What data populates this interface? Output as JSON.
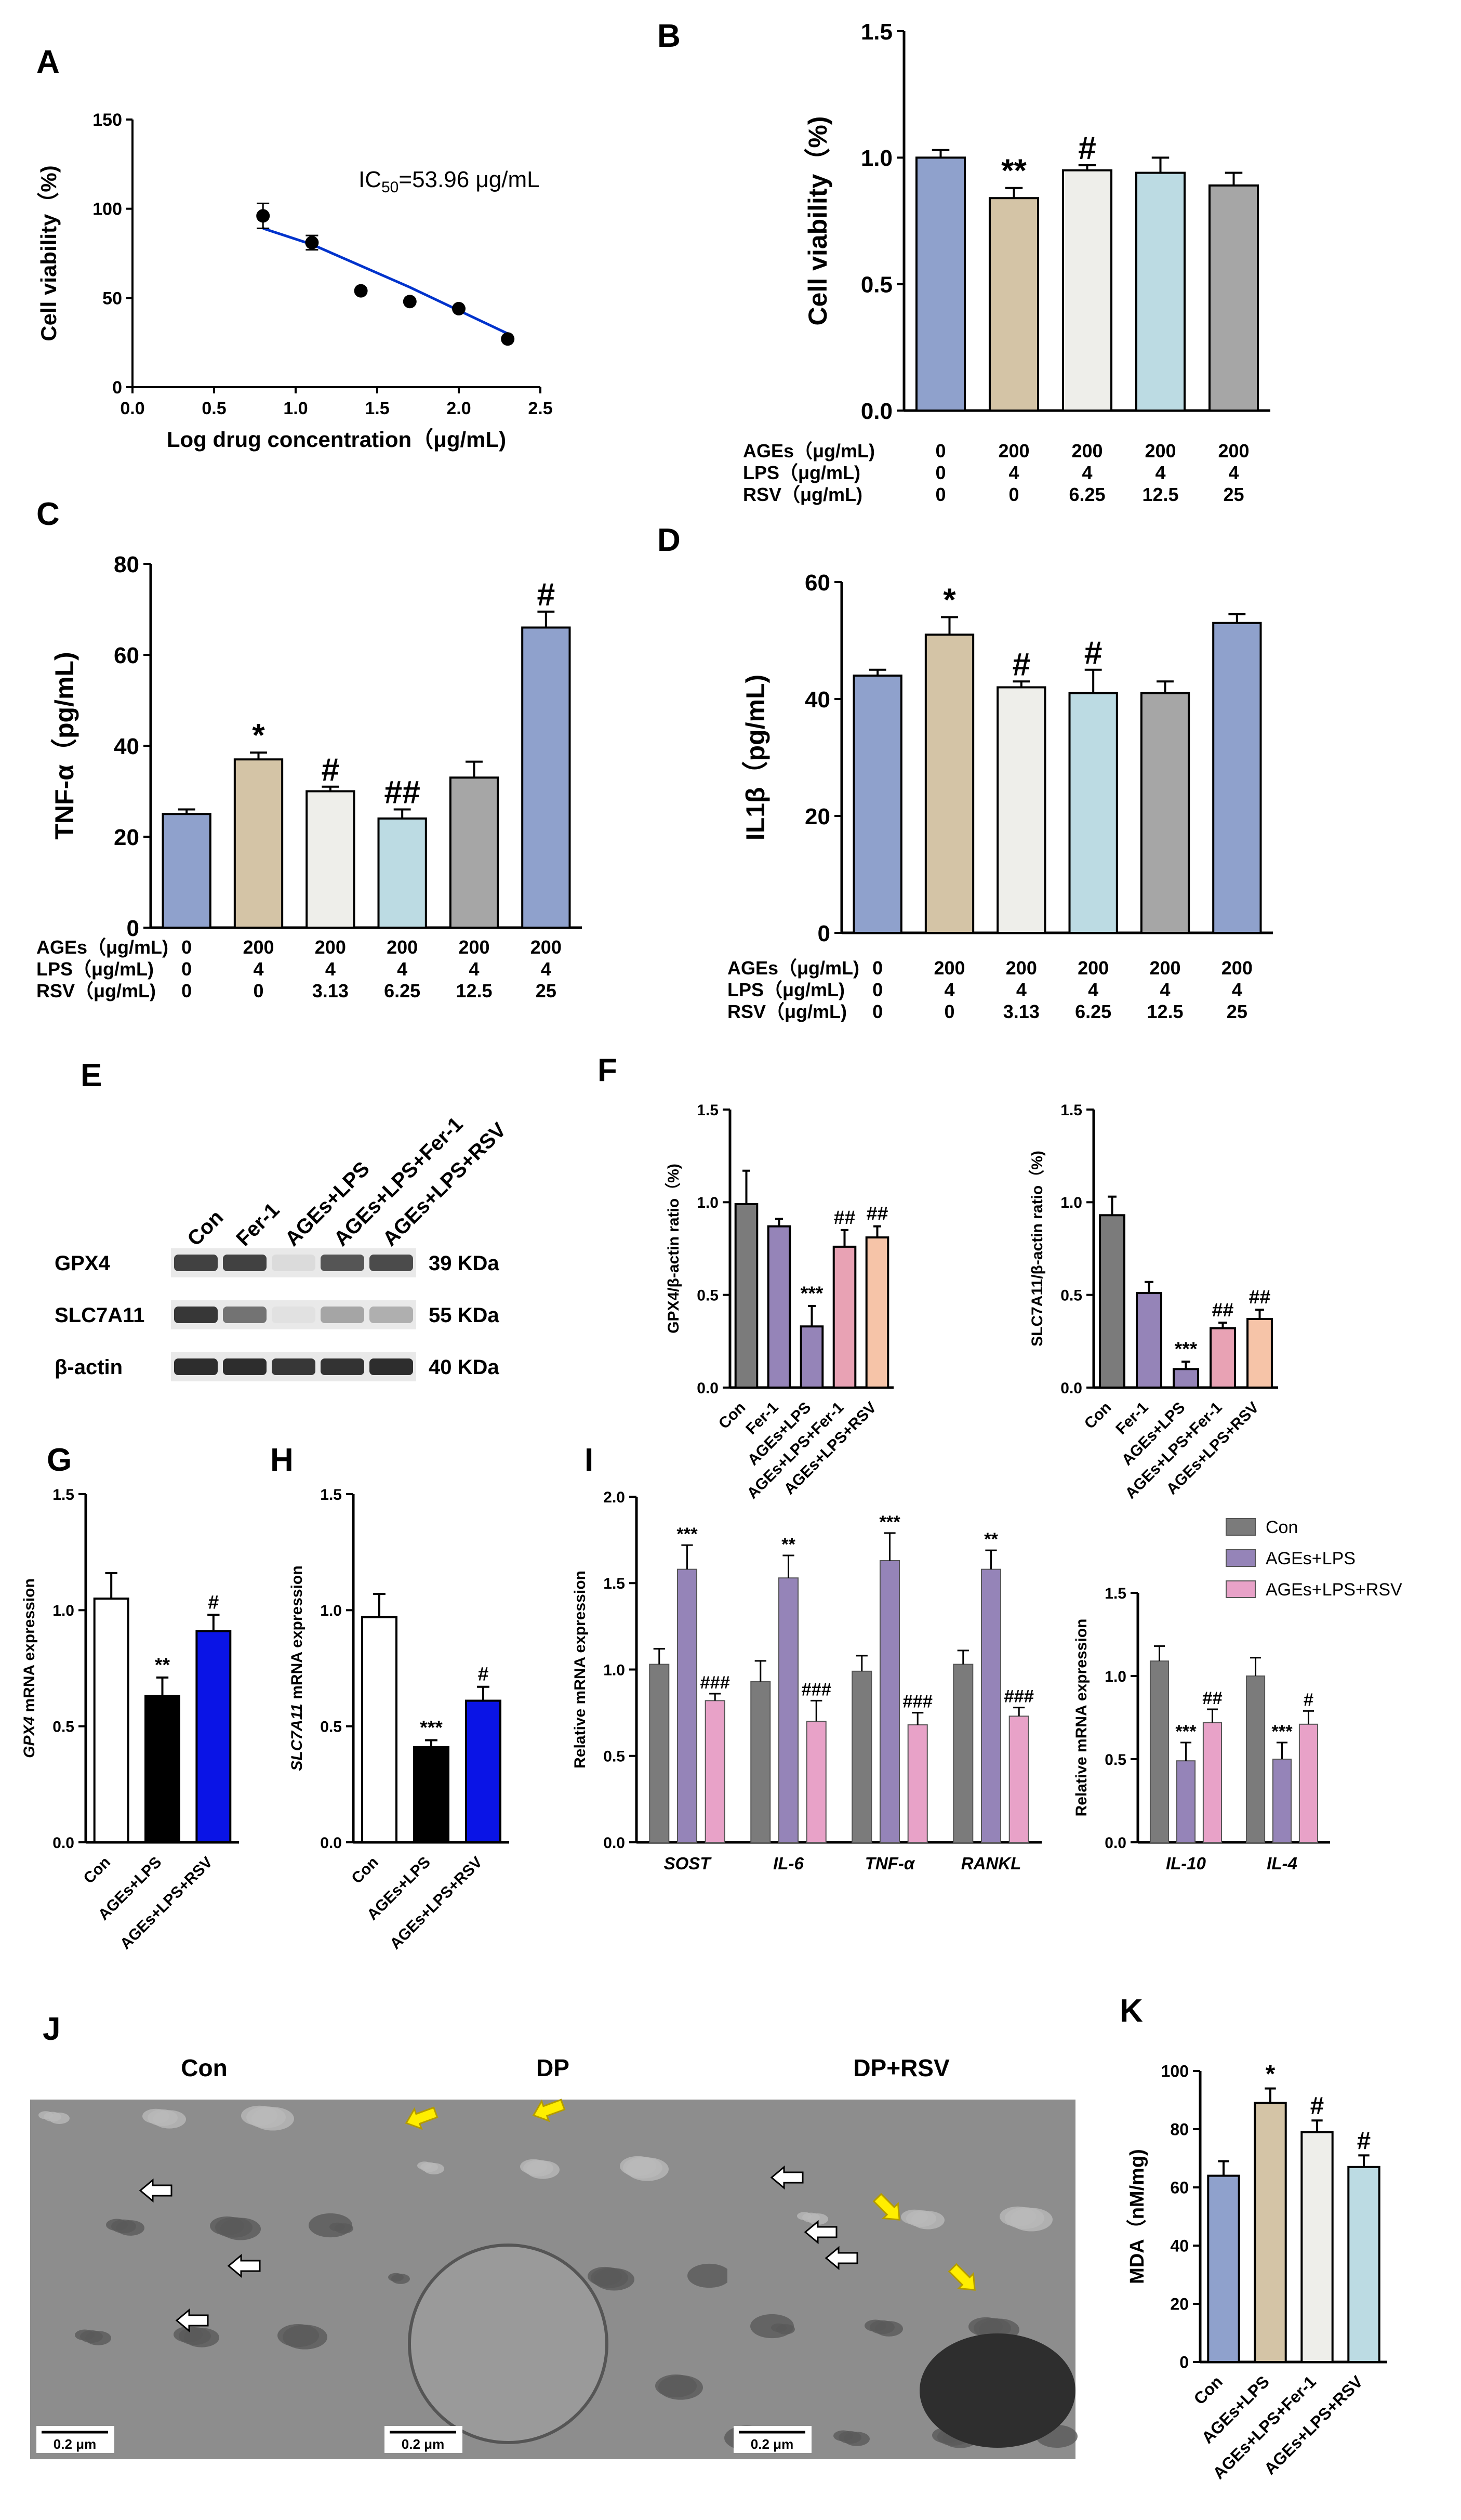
{
  "panels": {
    "A": "A",
    "B": "B",
    "C": "C",
    "D": "D",
    "E": "E",
    "F": "F",
    "G": "G",
    "H": "H",
    "I": "I",
    "J": "J",
    "K": "K"
  },
  "conditions": {
    "row_labels": [
      "AGEs（μg/mL)",
      "LPS（μg/mL)",
      "RSV（μg/mL)"
    ],
    "B": [
      [
        "0",
        "200",
        "200",
        "200",
        "200"
      ],
      [
        "0",
        "4",
        "4",
        "4",
        "4"
      ],
      [
        "0",
        "0",
        "6.25",
        "12.5",
        "25"
      ]
    ],
    "C": [
      [
        "0",
        "200",
        "200",
        "200",
        "200",
        "200"
      ],
      [
        "0",
        "4",
        "4",
        "4",
        "4",
        "4"
      ],
      [
        "0",
        "0",
        "3.13",
        "6.25",
        "12.5",
        "25"
      ]
    ],
    "D": [
      [
        "0",
        "200",
        "200",
        "200",
        "200",
        "200"
      ],
      [
        "0",
        "4",
        "4",
        "4",
        "4",
        "4"
      ],
      [
        "0",
        "0",
        "3.13",
        "6.25",
        "12.5",
        "25"
      ]
    ]
  },
  "blot": {
    "lanes": [
      "Con",
      "Fer-1",
      "AGEs+LPS",
      "AGEs+LPS+Fer-1",
      "AGEs+LPS+RSV"
    ],
    "rows": [
      {
        "protein": "GPX4",
        "size": "39 KDa",
        "intensity": [
          0.85,
          0.85,
          0.08,
          0.75,
          0.8
        ]
      },
      {
        "protein": "SLC7A11",
        "size": "55 KDa",
        "intensity": [
          0.9,
          0.6,
          0.05,
          0.35,
          0.3
        ]
      },
      {
        "protein": "β-actin",
        "size": "40 KDa",
        "intensity": [
          0.95,
          0.95,
          0.9,
          0.92,
          0.95
        ]
      }
    ]
  },
  "tem": {
    "labels": [
      "Con",
      "DP",
      "DP+RSV"
    ],
    "scale_bar": "0.2 μm"
  },
  "chart_data": [
    {
      "id": "A",
      "type": "scatter",
      "xlabel": "Log drug concentration（μg/mL)",
      "ylabel": "Cell viability（%)",
      "xlim": [
        0,
        2.5
      ],
      "ylim": [
        0,
        150
      ],
      "xticks": [
        "0.0",
        "0.5",
        "1.0",
        "1.5",
        "2.0",
        "2.5"
      ],
      "yticks": [
        "0",
        "50",
        "100",
        "150"
      ],
      "x": [
        0.8,
        1.1,
        1.4,
        1.7,
        2.0,
        2.3
      ],
      "y": [
        96,
        81,
        54,
        48,
        44,
        27
      ],
      "err": [
        7,
        4,
        0,
        0,
        0,
        0
      ],
      "fit_x": [
        0.8,
        1.1,
        1.4,
        1.7,
        2.0,
        2.3
      ],
      "fit_y": [
        89,
        80,
        68,
        56,
        43,
        30
      ],
      "annotation_pre": "IC",
      "annotation_sub": "50",
      "annotation_post": "=53.96 μg/mL",
      "line_color": "#0033cc"
    },
    {
      "id": "B",
      "type": "bar",
      "ylabel": "Cell viability（%)",
      "ylim": [
        0,
        1.5
      ],
      "yticks": [
        "0.0",
        "0.5",
        "1.0",
        "1.5"
      ],
      "values": [
        1.0,
        0.84,
        0.95,
        0.94,
        0.89
      ],
      "err": [
        0.03,
        0.04,
        0.02,
        0.06,
        0.05
      ],
      "marks": [
        "",
        "**",
        "#",
        "",
        ""
      ],
      "colors": [
        "#8fa1cc",
        "#d4c4a6",
        "#eeeeea",
        "#bcdbe3",
        "#a6a6a6"
      ]
    },
    {
      "id": "C",
      "type": "bar",
      "ylabel": "TNF-α（pg/mL)",
      "ylim": [
        0,
        80
      ],
      "yticks": [
        "0",
        "20",
        "40",
        "60",
        "80"
      ],
      "values": [
        25,
        37,
        30,
        24,
        33,
        66
      ],
      "err": [
        1,
        1.5,
        1,
        2,
        3.5,
        3.5
      ],
      "marks": [
        "",
        "*",
        "#",
        "##",
        "",
        "#"
      ],
      "colors": [
        "#8fa1cc",
        "#d4c4a6",
        "#eeeeea",
        "#bcdbe3",
        "#a6a6a6",
        "#8fa1cc"
      ]
    },
    {
      "id": "D",
      "type": "bar",
      "ylabel": "IL1β（pg/mL)",
      "ylim": [
        0,
        60
      ],
      "yticks": [
        "0",
        "20",
        "40",
        "60"
      ],
      "values": [
        44,
        51,
        42,
        41,
        41,
        53
      ],
      "err": [
        1,
        3,
        1,
        4,
        2,
        1.5
      ],
      "marks": [
        "",
        "*",
        "#",
        "#",
        "",
        ""
      ],
      "colors": [
        "#8fa1cc",
        "#d4c4a6",
        "#eeeeea",
        "#bcdbe3",
        "#a6a6a6",
        "#8fa1cc"
      ]
    },
    {
      "id": "F1",
      "type": "bar",
      "ylabel": "GPX4/β-actin ratio（%)",
      "ylim": [
        0,
        1.5
      ],
      "yticks": [
        "0.0",
        "0.5",
        "1.0",
        "1.5"
      ],
      "categories": [
        "Con",
        "Fer-1",
        "AGEs+LPS",
        "AGEs+LPS+Fer-1",
        "AGEs+LPS+RSV"
      ],
      "values": [
        0.99,
        0.87,
        0.33,
        0.76,
        0.81
      ],
      "err": [
        0.18,
        0.04,
        0.11,
        0.09,
        0.06
      ],
      "marks": [
        "",
        "",
        "***",
        "##",
        "##"
      ],
      "colors": [
        "#7b7b7b",
        "#9584b8",
        "#9584b8",
        "#e8a2b4",
        "#f6c4a8"
      ]
    },
    {
      "id": "F2",
      "type": "bar",
      "ylabel": "SLC7A11/β-actin ratio（%)",
      "ylim": [
        0,
        1.5
      ],
      "yticks": [
        "0.0",
        "0.5",
        "1.0",
        "1.5"
      ],
      "categories": [
        "Con",
        "Fer-1",
        "AGEs+LPS",
        "AGEs+LPS+Fer-1",
        "AGEs+LPS+RSV"
      ],
      "values": [
        0.93,
        0.51,
        0.1,
        0.32,
        0.37
      ],
      "err": [
        0.1,
        0.06,
        0.04,
        0.03,
        0.05
      ],
      "marks": [
        "",
        "",
        "***",
        "##",
        "##"
      ],
      "colors": [
        "#7b7b7b",
        "#9584b8",
        "#9584b8",
        "#e8a2b4",
        "#f6c4a8"
      ]
    },
    {
      "id": "G",
      "type": "bar",
      "ylabel_italic": "GPX4",
      "ylabel_rest": " mRNA expression",
      "ylim": [
        0,
        1.5
      ],
      "yticks": [
        "0.0",
        "0.5",
        "1.0",
        "1.5"
      ],
      "categories": [
        "Con",
        "AGEs+LPS",
        "AGEs+LPS+RSV"
      ],
      "values": [
        1.05,
        0.63,
        0.91
      ],
      "err": [
        0.11,
        0.08,
        0.07
      ],
      "marks": [
        "",
        "**",
        "#"
      ],
      "colors": [
        "#ffffff",
        "#000000",
        "#0a14e6"
      ]
    },
    {
      "id": "H",
      "type": "bar",
      "ylabel_italic": "SLC7A11",
      "ylabel_rest": " mRNA expression",
      "ylim": [
        0,
        1.5
      ],
      "yticks": [
        "0.0",
        "0.5",
        "1.0",
        "1.5"
      ],
      "categories": [
        "Con",
        "AGEs+LPS",
        "AGEs+LPS+RSV"
      ],
      "values": [
        0.97,
        0.41,
        0.61
      ],
      "err": [
        0.1,
        0.03,
        0.06
      ],
      "marks": [
        "",
        "***",
        "#"
      ],
      "colors": [
        "#ffffff",
        "#000000",
        "#0a14e6"
      ]
    },
    {
      "id": "I1",
      "type": "bar",
      "ylabel": "Relative mRNA expression",
      "ylim": [
        0,
        2.0
      ],
      "yticks": [
        "0.0",
        "0.5",
        "1.0",
        "1.5",
        "2.0"
      ],
      "categories": [
        "SOST",
        "IL-6",
        "TNF-α",
        "RANKL"
      ],
      "series": [
        {
          "values": [
            1.03,
            0.93,
            0.99,
            1.03
          ],
          "err": [
            0.09,
            0.12,
            0.09,
            0.08
          ],
          "marks": [
            "",
            "",
            "",
            ""
          ]
        },
        {
          "values": [
            1.58,
            1.53,
            1.63,
            1.58
          ],
          "err": [
            0.14,
            0.13,
            0.16,
            0.11
          ],
          "marks": [
            "***",
            "**",
            "***",
            "**"
          ]
        },
        {
          "values": [
            0.82,
            0.7,
            0.68,
            0.73
          ],
          "err": [
            0.04,
            0.12,
            0.07,
            0.05
          ],
          "marks": [
            "###",
            "###",
            "###",
            "###"
          ]
        }
      ],
      "colors": [
        "#7b7b7b",
        "#9584b8",
        "#e8a2c8"
      ]
    },
    {
      "id": "I2",
      "type": "bar",
      "ylabel": "Relative mRNA expression",
      "ylim": [
        0,
        1.5
      ],
      "yticks": [
        "0.0",
        "0.5",
        "1.0",
        "1.5"
      ],
      "categories": [
        "IL-10",
        "IL-4"
      ],
      "series": [
        {
          "name": "Con",
          "values": [
            1.09,
            1.0
          ],
          "err": [
            0.09,
            0.11
          ],
          "marks": [
            "",
            ""
          ]
        },
        {
          "name": "AGEs+LPS",
          "values": [
            0.49,
            0.5
          ],
          "err": [
            0.11,
            0.1
          ],
          "marks": [
            "***",
            "***"
          ]
        },
        {
          "name": "AGEs+LPS+RSV",
          "values": [
            0.72,
            0.71
          ],
          "err": [
            0.08,
            0.08
          ],
          "marks": [
            "##",
            "#"
          ]
        }
      ],
      "colors": [
        "#7b7b7b",
        "#9584b8",
        "#e8a2c8"
      ],
      "legend": "top-right"
    },
    {
      "id": "K",
      "type": "bar",
      "ylabel": "MDA（nM/mg)",
      "ylim": [
        0,
        100
      ],
      "yticks": [
        "0",
        "20",
        "40",
        "60",
        "80",
        "100"
      ],
      "categories": [
        "Con",
        "AGEs+LPS",
        "AGEs+LPS+Fer-1",
        "AGEs+LPS+RSV"
      ],
      "values": [
        64,
        89,
        79,
        67
      ],
      "err": [
        5,
        5,
        4,
        4
      ],
      "marks": [
        "",
        "*",
        "#",
        "#"
      ],
      "colors": [
        "#8fa1cc",
        "#d4c4a6",
        "#eeeeea",
        "#bcdbe3"
      ]
    }
  ]
}
